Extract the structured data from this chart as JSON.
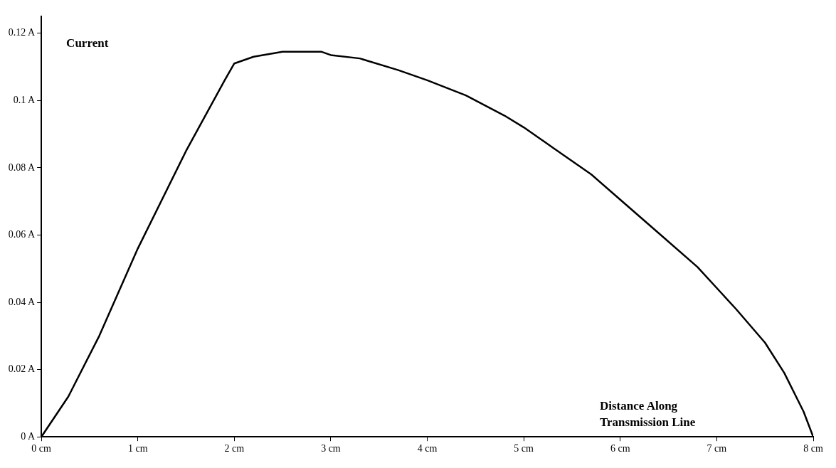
{
  "chart_data": {
    "type": "line",
    "xlabel": "Distance Along Transmission Line",
    "ylabel": "Current",
    "x": [
      0,
      0.28,
      0.6,
      1.0,
      1.5,
      1.9,
      2.0,
      2.2,
      2.5,
      2.9,
      3.0,
      3.3,
      3.7,
      4.0,
      4.4,
      4.8,
      5.0,
      5.3,
      5.7,
      6.0,
      6.4,
      6.8,
      7.2,
      7.5,
      7.7,
      7.9,
      8.0
    ],
    "series": [
      {
        "color": "#000000",
        "values": [
          0,
          0.012,
          0.03,
          0.056,
          0.085,
          0.106,
          0.111,
          0.113,
          0.1145,
          0.1145,
          0.1135,
          0.1125,
          0.109,
          0.106,
          0.1015,
          0.0955,
          0.092,
          0.086,
          0.078,
          0.0705,
          0.0605,
          0.0505,
          0.038,
          0.028,
          0.019,
          0.0075,
          0
        ]
      }
    ],
    "xlim": [
      0,
      8
    ],
    "ylim": [
      0,
      0.125
    ],
    "xticks": [
      {
        "value": 0,
        "label": "0 cm"
      },
      {
        "value": 1,
        "label": "1 cm"
      },
      {
        "value": 2,
        "label": "2 cm"
      },
      {
        "value": 3,
        "label": "3 cm"
      },
      {
        "value": 4,
        "label": "4 cm"
      },
      {
        "value": 5,
        "label": "5 cm"
      },
      {
        "value": 6,
        "label": "6 cm"
      },
      {
        "value": 7,
        "label": "7 cm"
      },
      {
        "value": 8,
        "label": "8 cm"
      }
    ],
    "yticks": [
      {
        "value": 0,
        "label": "0 A"
      },
      {
        "value": 0.02,
        "label": "0.02 A"
      },
      {
        "value": 0.04,
        "label": "0.04 A"
      },
      {
        "value": 0.06,
        "label": "0.06 A"
      },
      {
        "value": 0.08,
        "label": "0.08 A"
      },
      {
        "value": 0.1,
        "label": "0.1 A"
      },
      {
        "value": 0.12,
        "label": "0.12 A"
      }
    ],
    "grid": false,
    "legend": false,
    "marker": "none",
    "line_style": "solid"
  }
}
